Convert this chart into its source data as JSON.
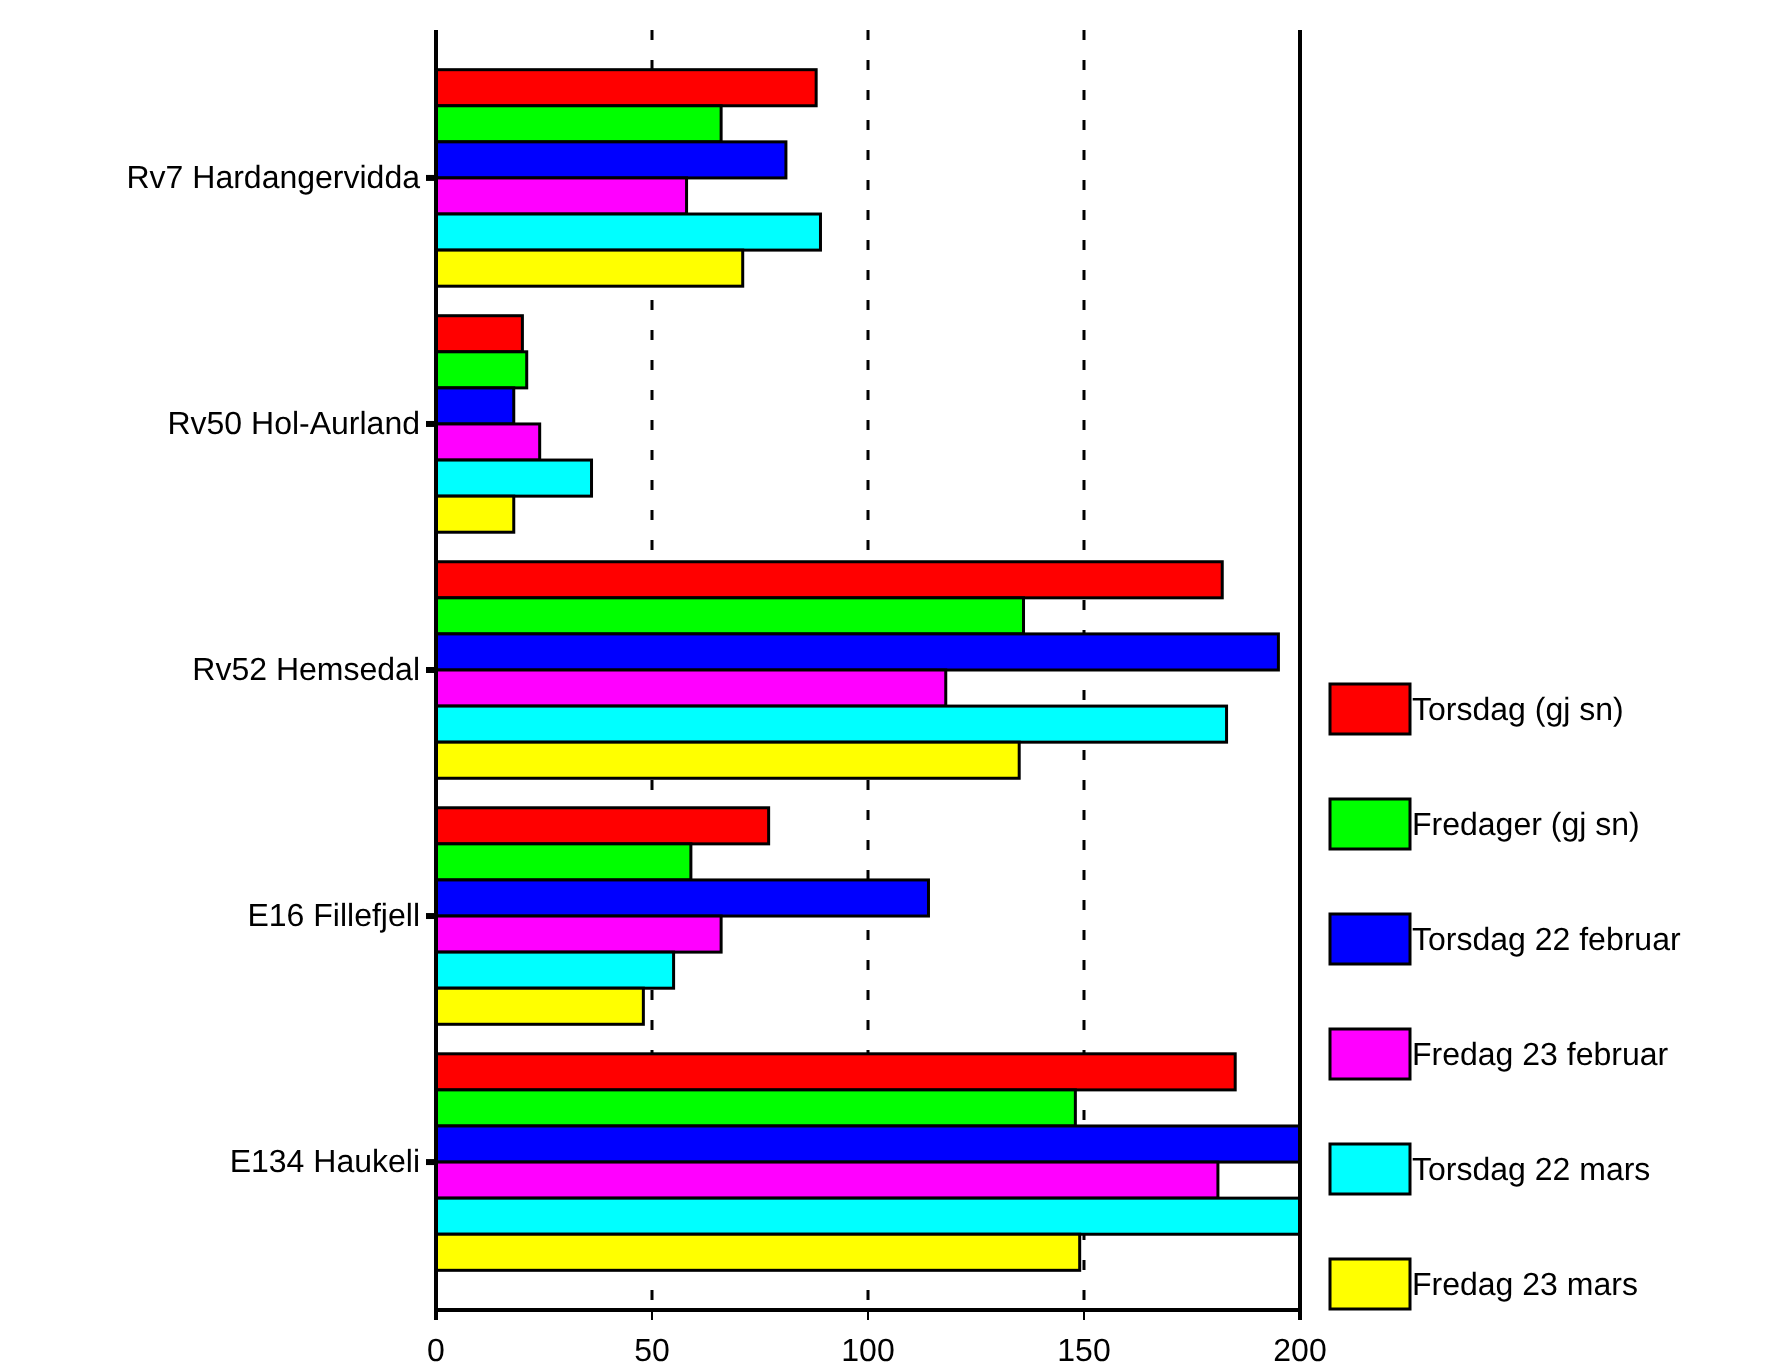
{
  "chart_data": {
    "type": "bar",
    "orientation": "horizontal",
    "categories": [
      "Rv7 Hardangervidda",
      "Rv50 Hol-Aurland",
      "Rv52 Hemsedal",
      "E16 Fillefjell",
      "E134 Haukeli"
    ],
    "series": [
      {
        "name": "Torsdag (gj sn)",
        "color": "#ff0000",
        "values": [
          88,
          20,
          182,
          77,
          185
        ]
      },
      {
        "name": "Fredager (gj sn)",
        "color": "#00ff00",
        "values": [
          66,
          21,
          136,
          59,
          148
        ]
      },
      {
        "name": "Torsdag 22 februar",
        "color": "#0000ff",
        "values": [
          81,
          18,
          195,
          114,
          200
        ]
      },
      {
        "name": "Fredag 23 februar",
        "color": "#ff00ff",
        "values": [
          58,
          24,
          118,
          66,
          181
        ]
      },
      {
        "name": "Torsdag 22 mars",
        "color": "#00ffff",
        "values": [
          89,
          36,
          183,
          55,
          200
        ]
      },
      {
        "name": "Fredag 23 mars",
        "color": "#ffff00",
        "values": [
          71,
          18,
          135,
          48,
          149
        ]
      }
    ],
    "xlim": [
      0,
      200
    ],
    "xticks": [
      0,
      50,
      100,
      150,
      200
    ],
    "grid": "x",
    "legend": "right"
  }
}
